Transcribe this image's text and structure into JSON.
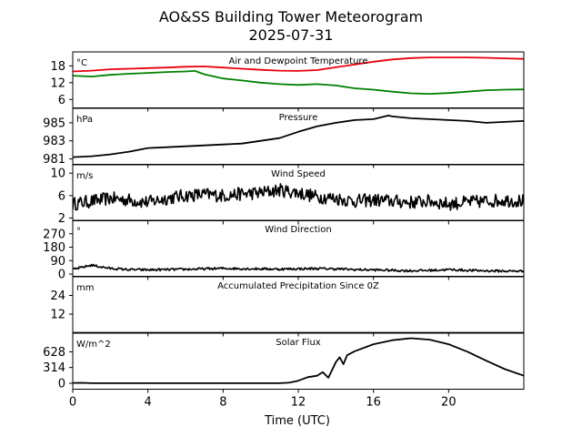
{
  "chart_data": {
    "type": "line",
    "title_line1": "AO&SS Building Tower Meteorogram",
    "title_line2": "2025-07-31",
    "xlabel": "Time (UTC)",
    "xlim": [
      0,
      24
    ],
    "xticks": [
      "0",
      "4",
      "8",
      "12",
      "16",
      "20"
    ],
    "xtick_values": [
      0,
      4,
      8,
      12,
      16,
      20
    ],
    "panels": [
      {
        "title": "Air and Dewpoint Temperature",
        "unit": "°C",
        "ylim": [
          3,
          23
        ],
        "yticks": [
          6,
          12,
          18
        ],
        "ytick_labels": [
          "6",
          "12",
          "18"
        ],
        "series": [
          {
            "name": "Air Temperature",
            "color": "#e8000b",
            "x": [
              0,
              1,
              2,
              3,
              4,
              5,
              6,
              7,
              8,
              9,
              10,
              11,
              12,
              13,
              14,
              15,
              16,
              17,
              18,
              19,
              20,
              21,
              22,
              23,
              24
            ],
            "y": [
              16.0,
              16.3,
              16.8,
              17.0,
              17.2,
              17.4,
              17.7,
              17.8,
              17.4,
              17.0,
              16.6,
              16.3,
              16.2,
              16.5,
              17.5,
              18.5,
              19.5,
              20.3,
              20.8,
              21.0,
              21.0,
              21.0,
              20.9,
              20.7,
              20.5
            ]
          },
          {
            "name": "Dewpoint Temperature",
            "color": "#008000",
            "x": [
              0,
              1,
              2,
              3,
              4,
              5,
              6,
              6.5,
              7,
              8,
              9,
              10,
              11,
              12,
              13,
              14,
              15,
              16,
              17,
              18,
              19,
              20,
              21,
              22,
              23,
              24
            ],
            "y": [
              14.5,
              14.2,
              14.8,
              15.2,
              15.5,
              15.8,
              16.0,
              16.2,
              15.0,
              13.5,
              12.8,
              12.0,
              11.5,
              11.2,
              11.5,
              11.0,
              10.0,
              9.5,
              8.8,
              8.2,
              8.0,
              8.3,
              8.8,
              9.3,
              9.5,
              9.6
            ]
          }
        ]
      },
      {
        "title": "Pressure",
        "unit": "hPa",
        "ylim": [
          980.4,
          986.6
        ],
        "yticks": [
          981,
          983,
          985
        ],
        "ytick_labels": [
          "981",
          "983",
          "985"
        ],
        "series": [
          {
            "name": "Pressure",
            "color": "#000000",
            "x": [
              0,
              1,
              2,
              3,
              4,
              5,
              6,
              7,
              8,
              9,
              10,
              11,
              12,
              13,
              14,
              15,
              16,
              16.8,
              17,
              18,
              19,
              20,
              21,
              22,
              23,
              24
            ],
            "y": [
              981.2,
              981.3,
              981.5,
              981.8,
              982.2,
              982.3,
              982.4,
              982.5,
              982.6,
              982.7,
              983.0,
              983.3,
              984.0,
              984.6,
              985.0,
              985.3,
              985.4,
              985.8,
              985.7,
              985.5,
              985.4,
              985.3,
              985.2,
              985.0,
              985.1,
              985.2
            ]
          }
        ]
      },
      {
        "title": "Wind Speed",
        "unit": "m/s",
        "ylim": [
          1.5,
          11.5
        ],
        "yticks": [
          2,
          6,
          10
        ],
        "ytick_labels": [
          "2",
          "6",
          "10"
        ],
        "series": [
          {
            "name": "Wind Speed",
            "color": "#000000",
            "x": [
              0,
              1,
              2,
              3,
              4,
              5,
              6,
              7,
              8,
              9,
              10,
              11,
              12,
              13,
              14,
              15,
              16,
              17,
              18,
              19,
              20,
              21,
              22,
              23,
              24
            ],
            "y": [
              4.5,
              5.0,
              5.5,
              5.2,
              4.8,
              5.5,
              6.0,
              6.2,
              6.0,
              6.3,
              6.5,
              7.0,
              6.5,
              5.8,
              5.5,
              5.0,
              5.2,
              5.0,
              4.8,
              5.0,
              4.5,
              4.8,
              5.0,
              5.2,
              5.0
            ],
            "noise": 1.2
          }
        ]
      },
      {
        "title": "Wind Direction",
        "unit": "°",
        "ylim": [
          -15,
          360
        ],
        "yticks": [
          0,
          90,
          180,
          270
        ],
        "ytick_labels": [
          "0",
          "90",
          "180",
          "270"
        ],
        "series": [
          {
            "name": "Wind Direction",
            "color": "#000000",
            "x": [
              0,
              0.5,
              1,
              1.5,
              2,
              3,
              4,
              5,
              6,
              7,
              8,
              9,
              10,
              11,
              12,
              13,
              14,
              15,
              16,
              17,
              18,
              19,
              20,
              21,
              22,
              23,
              24
            ],
            "y": [
              30,
              45,
              60,
              48,
              38,
              30,
              28,
              30,
              32,
              35,
              38,
              36,
              35,
              33,
              35,
              37,
              35,
              30,
              28,
              25,
              22,
              25,
              30,
              25,
              22,
              20,
              20
            ],
            "noise": 8
          }
        ]
      },
      {
        "title": "Accumulated Precipitation Since 0Z",
        "unit": "mm",
        "ylim": [
          0,
          36
        ],
        "yticks": [
          12,
          24
        ],
        "ytick_labels": [
          "12",
          "24"
        ],
        "series": [
          {
            "name": "Accumulated Precipitation",
            "color": "#000000",
            "x": [
              0,
              24
            ],
            "y": [
              0,
              0
            ]
          }
        ]
      },
      {
        "title": "Solar Flux",
        "unit": "W/m^2",
        "ylim": [
          -120,
          1000
        ],
        "yticks": [
          0,
          314,
          628
        ],
        "ytick_labels": [
          "0",
          "314",
          "628"
        ],
        "series": [
          {
            "name": "Solar Flux",
            "color": "#000000",
            "x": [
              0,
              0.5,
              1,
              2,
              4,
              6,
              8,
              10,
              11,
              11.5,
              12,
              12.5,
              13,
              13.3,
              13.6,
              14,
              14.2,
              14.4,
              14.6,
              15,
              16,
              17,
              18,
              19,
              20,
              21,
              22,
              23,
              24
            ],
            "y": [
              5,
              8,
              0,
              0,
              0,
              0,
              0,
              0,
              0,
              10,
              50,
              120,
              150,
              220,
              110,
              420,
              520,
              380,
              560,
              640,
              780,
              860,
              900,
              870,
              780,
              630,
              450,
              280,
              150
            ]
          }
        ]
      }
    ]
  }
}
